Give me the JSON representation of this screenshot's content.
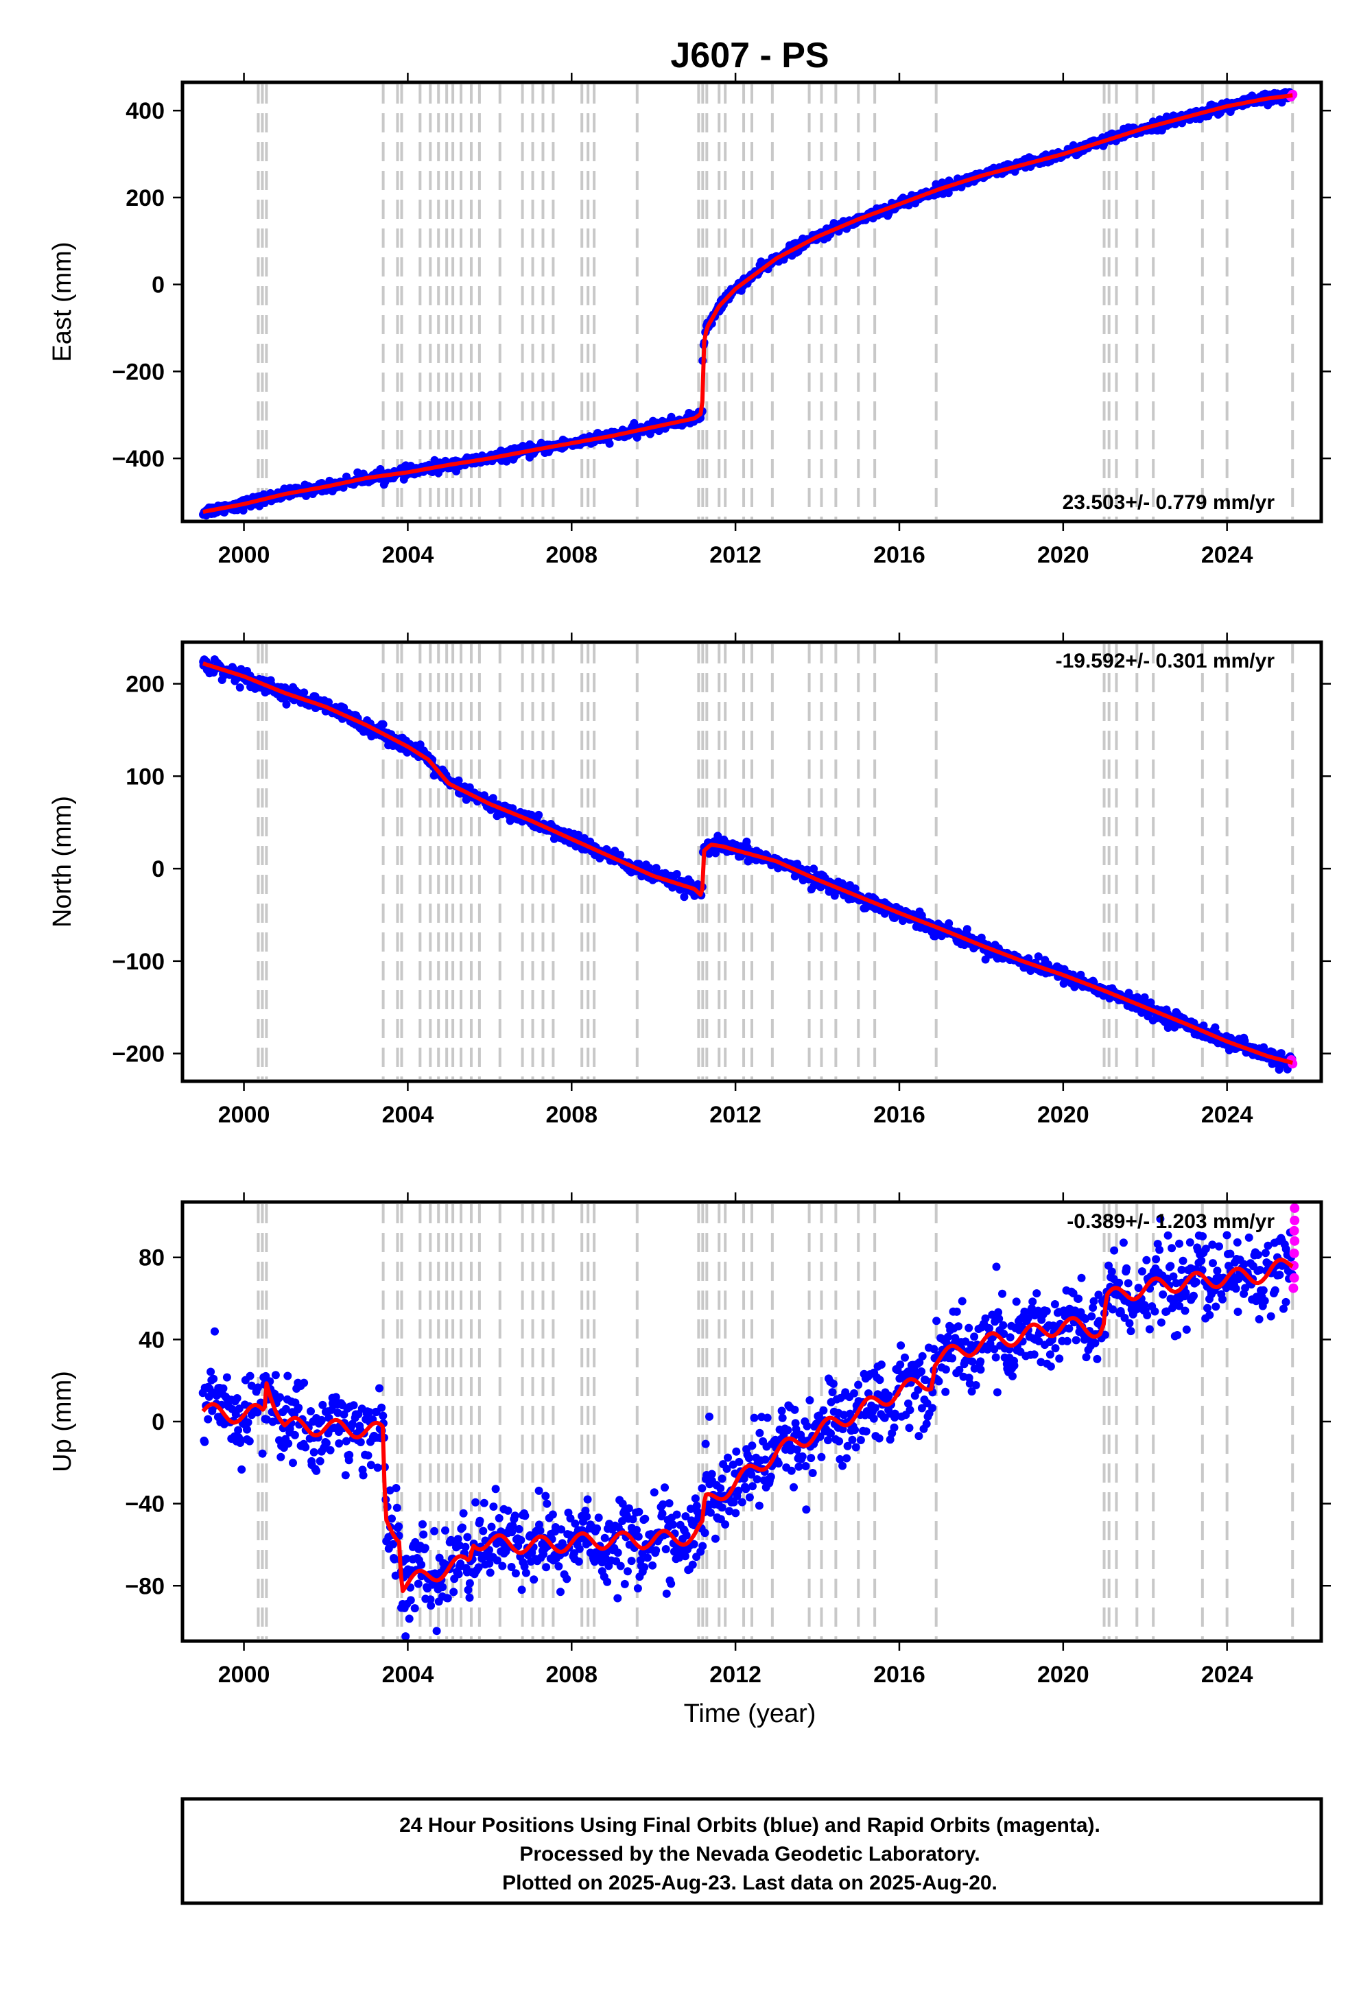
{
  "title": "J607 - PS",
  "xlabel": "Time (year)",
  "footer": {
    "line1": "24 Hour Positions Using Final Orbits (blue) and Rapid Orbits (magenta).",
    "line2": "Processed by the Nevada Geodetic Laboratory.",
    "line3": "Plotted on 2025-Aug-23. Last data on 2025-Aug-20."
  },
  "colors": {
    "final_orbits": "#0000ff",
    "rapid_orbits": "#ff00ff",
    "model": "#ff0000",
    "event_lines": "#c8c8c8"
  },
  "chart_data": [
    {
      "type": "scatter",
      "component": "east",
      "ylabel": "East (mm)",
      "rate": "23.503+/- 0.779 mm/yr",
      "xlim": [
        1998.5,
        2026.3
      ],
      "ylim": [
        -545,
        465
      ],
      "x_ticks": [
        2000,
        2004,
        2008,
        2012,
        2016,
        2020,
        2024
      ],
      "y_ticks": [
        -400,
        -200,
        0,
        200,
        400
      ],
      "y_tick_labels": [
        "−400",
        "−200",
        "0",
        "200",
        "400"
      ],
      "x_tick_labels": [
        "2000",
        "2004",
        "2008",
        "2012",
        "2016",
        "2020",
        "2024"
      ],
      "model": {
        "x": [
          1999.0,
          2000.0,
          2001.0,
          2002.0,
          2003.0,
          2004.0,
          2005.0,
          2006.0,
          2007.0,
          2008.0,
          2009.0,
          2010.0,
          2011.0,
          2011.19,
          2011.2,
          2011.3,
          2011.6,
          2012.0,
          2013.0,
          2014.0,
          2015.0,
          2016.0,
          2017.0,
          2018.0,
          2019.0,
          2020.0,
          2021.0,
          2022.0,
          2023.0,
          2024.0,
          2025.0,
          2025.6
        ],
        "y": [
          -523,
          -505,
          -482,
          -465,
          -445,
          -432,
          -415,
          -400,
          -382,
          -365,
          -348,
          -328,
          -308,
          -295,
          -150,
          -100,
          -50,
          -10,
          60,
          110,
          150,
          185,
          220,
          250,
          275,
          300,
          330,
          360,
          385,
          410,
          428,
          435
        ]
      },
      "scatter_spread": 6,
      "rapid_points": [
        {
          "x": 2025.56,
          "y": 432
        },
        {
          "x": 2025.6,
          "y": 437
        }
      ]
    },
    {
      "type": "scatter",
      "component": "north",
      "ylabel": "North (mm)",
      "rate": "-19.592+/- 0.301 mm/yr",
      "xlim": [
        1998.5,
        2026.3
      ],
      "ylim": [
        -230,
        245
      ],
      "x_ticks": [
        2000,
        2004,
        2008,
        2012,
        2016,
        2020,
        2024
      ],
      "y_ticks": [
        -200,
        -100,
        0,
        100,
        200
      ],
      "y_tick_labels": [
        "−200",
        "−100",
        "0",
        "100",
        "200"
      ],
      "x_tick_labels": [
        "2000",
        "2004",
        "2008",
        "2012",
        "2016",
        "2020",
        "2024"
      ],
      "model": {
        "x": [
          1999.0,
          2000.0,
          2001.0,
          2002.0,
          2003.0,
          2004.0,
          2004.5,
          2005.0,
          2006.0,
          2007.0,
          2008.0,
          2009.0,
          2010.0,
          2011.0,
          2011.19,
          2011.2,
          2011.4,
          2011.7,
          2012.0,
          2013.0,
          2014.0,
          2015.0,
          2016.0,
          2017.0,
          2018.0,
          2019.0,
          2020.0,
          2021.0,
          2022.0,
          2023.0,
          2024.0,
          2025.0,
          2025.6
        ],
        "y": [
          222,
          208,
          190,
          175,
          155,
          132,
          118,
          92,
          70,
          52,
          32,
          12,
          -8,
          -22,
          -30,
          18,
          26,
          24,
          20,
          8,
          -12,
          -30,
          -48,
          -65,
          -83,
          -100,
          -115,
          -132,
          -150,
          -168,
          -187,
          -203,
          -210
        ]
      },
      "scatter_spread": 4,
      "rapid_points": [
        {
          "x": 2025.57,
          "y": -207
        },
        {
          "x": 2025.6,
          "y": -211
        }
      ]
    },
    {
      "type": "scatter",
      "component": "up",
      "ylabel": "Up (mm)",
      "rate": "-0.389+/- 1.203 mm/yr",
      "xlim": [
        1998.5,
        2026.3
      ],
      "ylim": [
        -107,
        107
      ],
      "x_ticks": [
        2000,
        2004,
        2008,
        2012,
        2016,
        2020,
        2024
      ],
      "y_ticks": [
        -80,
        -40,
        0,
        40,
        80
      ],
      "y_tick_labels": [
        "−80",
        "−40",
        "0",
        "40",
        "80"
      ],
      "x_tick_labels": [
        "2000",
        "2004",
        "2008",
        "2012",
        "2016",
        "2020",
        "2024"
      ],
      "model": {
        "x": [
          1999.0,
          2000.0,
          2000.5,
          2000.55,
          2001.0,
          2002.0,
          2003.0,
          2003.4,
          2003.45,
          2003.8,
          2003.85,
          2004.5,
          2005.5,
          2005.6,
          2006.5,
          2007.5,
          2008.5,
          2009.5,
          2010.5,
          2011.0,
          2011.2,
          2011.25,
          2012.0,
          2013.0,
          2014.0,
          2015.0,
          2016.0,
          2016.8,
          2016.85,
          2018.0,
          2019.0,
          2020.0,
          2020.9,
          2021.0,
          2021.05,
          2022.0,
          2023.0,
          2024.0,
          2025.0,
          2025.6
        ],
        "y": [
          5,
          3,
          5,
          20,
          -2,
          -3,
          -4,
          -5,
          -48,
          -55,
          -80,
          -75,
          -68,
          -58,
          -60,
          -60,
          -58,
          -58,
          -57,
          -55,
          -52,
          -40,
          -30,
          -15,
          -5,
          5,
          15,
          20,
          30,
          38,
          42,
          47,
          45,
          48,
          60,
          65,
          68,
          70,
          72,
          78
        ]
      },
      "scatter_spread": 10,
      "rapid_points": [
        {
          "x": 2025.62,
          "y": 65
        },
        {
          "x": 2025.64,
          "y": 70
        },
        {
          "x": 2025.63,
          "y": 76
        },
        {
          "x": 2025.64,
          "y": 82
        },
        {
          "x": 2025.65,
          "y": 88
        },
        {
          "x": 2025.64,
          "y": 93
        },
        {
          "x": 2025.65,
          "y": 98
        },
        {
          "x": 2025.65,
          "y": 104
        }
      ]
    }
  ],
  "event_lines_x": [
    2000.35,
    2000.45,
    2000.55,
    2003.4,
    2003.75,
    2003.85,
    2004.3,
    2004.55,
    2004.75,
    2004.95,
    2005.1,
    2005.3,
    2005.55,
    2005.75,
    2006.25,
    2006.8,
    2007.05,
    2007.3,
    2007.55,
    2008.25,
    2008.4,
    2008.55,
    2009.6,
    2011.1,
    2011.2,
    2011.3,
    2011.6,
    2011.75,
    2012.2,
    2012.4,
    2012.9,
    2013.8,
    2014.1,
    2014.45,
    2015.0,
    2015.4,
    2016.9,
    2021.0,
    2021.12,
    2021.3,
    2021.8,
    2022.2,
    2023.4,
    2024.0,
    2025.6
  ]
}
